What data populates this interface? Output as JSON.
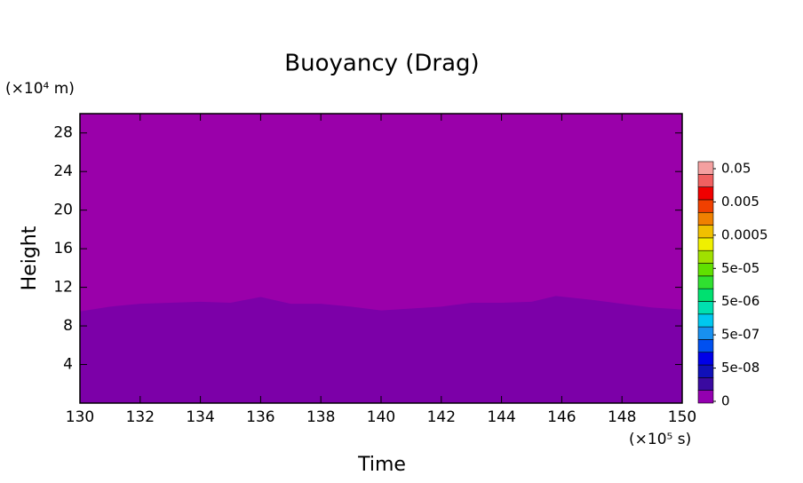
{
  "chart_data": {
    "type": "filled_contour",
    "title": "Buoyancy (Drag)",
    "x_label": "Time",
    "y_label": "Height",
    "x_unit": "(×10⁵ s)",
    "y_unit": "(×10⁴ m)",
    "xlim": [
      130,
      150
    ],
    "ylim": [
      0,
      30
    ],
    "xticks": [
      130,
      132,
      134,
      136,
      138,
      140,
      142,
      144,
      146,
      148,
      150
    ],
    "yticks": [
      4,
      8,
      12,
      16,
      20,
      24,
      28
    ],
    "background_color": "#9a00aa",
    "x": [
      130,
      131,
      132,
      133,
      134,
      135,
      136,
      137,
      138,
      139,
      140,
      141,
      142,
      143,
      144,
      145,
      145.8,
      147,
      148,
      149,
      150
    ],
    "series": [
      {
        "color": "#7c00a8",
        "values": [
          9.5,
          10.0,
          10.3,
          10.4,
          10.5,
          10.4,
          11.0,
          10.3,
          10.3,
          10.0,
          9.6,
          9.8,
          10.0,
          10.4,
          10.4,
          10.5,
          11.1,
          10.7,
          10.3,
          9.9,
          9.7
        ]
      }
    ],
    "colorbar": {
      "colors": [
        "#9400b0",
        "#3a0aa0",
        "#1010b8",
        "#0000e8",
        "#0050f0",
        "#1890f0",
        "#00c8f0",
        "#00e0b0",
        "#00e070",
        "#30e030",
        "#60e000",
        "#a0e000",
        "#f0f000",
        "#f0c000",
        "#f08000",
        "#f04000",
        "#f00000",
        "#f06060",
        "#f4a0a0"
      ],
      "ticks": [
        0,
        {
          "value": 5e-08,
          "label": "5e-08"
        },
        {
          "value": 5e-07,
          "label": "5e-07"
        },
        {
          "value": 5e-06,
          "label": "5e-06"
        },
        {
          "value": 5e-05,
          "label": "5e-05"
        },
        0.0005,
        0.005,
        0.05
      ]
    }
  }
}
